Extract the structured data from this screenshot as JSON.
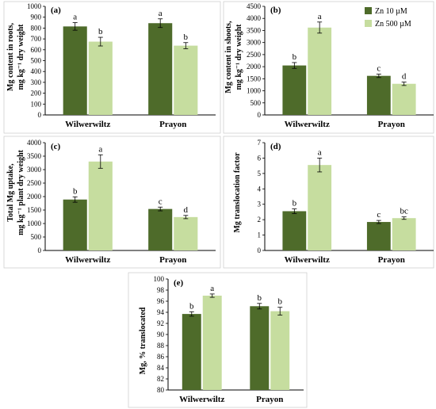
{
  "legend": {
    "entries": [
      {
        "label": "Zn 10 µM",
        "color": "#4e6b2a"
      },
      {
        "label": "Zn 500 µM",
        "color": "#c6dd9f"
      }
    ]
  },
  "chart_data": [
    {
      "type": "bar",
      "panel": "(a)",
      "ylabel": [
        "Mg content in roots,",
        "mg kg⁻¹ dry weight"
      ],
      "ylim": [
        0,
        1000
      ],
      "yticks": [
        0,
        100,
        200,
        300,
        400,
        500,
        600,
        700,
        800,
        900,
        1000
      ],
      "categories": [
        "Wilwerwiltz",
        "Prayon"
      ],
      "series": [
        {
          "name": "Zn 10 µM",
          "values": [
            815,
            845
          ],
          "errors": [
            35,
            40
          ],
          "letters": [
            "a",
            "a"
          ]
        },
        {
          "name": "Zn 500 µM",
          "values": [
            675,
            638
          ],
          "errors": [
            40,
            28
          ],
          "letters": [
            "b",
            "b"
          ]
        }
      ]
    },
    {
      "type": "bar",
      "panel": "(b)",
      "ylabel": [
        "Mg content in shoots,",
        "mg kg⁻¹ dry weight"
      ],
      "ylim": [
        0,
        4500
      ],
      "yticks": [
        0,
        500,
        1000,
        1500,
        2000,
        2500,
        3000,
        3500,
        4000,
        4500
      ],
      "categories": [
        "Wilwerwiltz",
        "Prayon"
      ],
      "series": [
        {
          "name": "Zn 10 µM",
          "values": [
            2050,
            1620
          ],
          "errors": [
            120,
            70
          ],
          "letters": [
            "b",
            "c"
          ]
        },
        {
          "name": "Zn 500 µM",
          "values": [
            3620,
            1290
          ],
          "errors": [
            230,
            70
          ],
          "letters": [
            "a",
            "d"
          ]
        }
      ]
    },
    {
      "type": "bar",
      "panel": "(c)",
      "ylabel": [
        "Total Mg uptake,",
        "mg kg⁻¹ plant dry weight"
      ],
      "ylim": [
        0,
        4000
      ],
      "yticks": [
        0,
        500,
        1000,
        1500,
        2000,
        2500,
        3000,
        3500,
        4000
      ],
      "categories": [
        "Wilwerwiltz",
        "Prayon"
      ],
      "series": [
        {
          "name": "Zn 10 µM",
          "values": [
            1890,
            1540
          ],
          "errors": [
            100,
            70
          ],
          "letters": [
            "b",
            "c"
          ]
        },
        {
          "name": "Zn 500 µM",
          "values": [
            3300,
            1240
          ],
          "errors": [
            250,
            60
          ],
          "letters": [
            "a",
            "d"
          ]
        }
      ]
    },
    {
      "type": "bar",
      "panel": "(d)",
      "ylabel": [
        "Mg translocation factor"
      ],
      "ylim": [
        0,
        7
      ],
      "yticks": [
        0,
        1,
        2,
        3,
        4,
        5,
        6,
        7
      ],
      "categories": [
        "Wilwerwiltz",
        "Prayon"
      ],
      "series": [
        {
          "name": "Zn 10 µM",
          "values": [
            2.55,
            1.85
          ],
          "errors": [
            0.15,
            0.1
          ],
          "letters": [
            "b",
            "c"
          ]
        },
        {
          "name": "Zn 500 µM",
          "values": [
            5.55,
            2.1
          ],
          "errors": [
            0.45,
            0.08
          ],
          "letters": [
            "a",
            "bc"
          ]
        }
      ]
    },
    {
      "type": "bar",
      "panel": "(e)",
      "ylabel": [
        "Mg, % translocated"
      ],
      "ylim": [
        80,
        100
      ],
      "yticks": [
        80,
        82,
        84,
        86,
        88,
        90,
        92,
        94,
        96,
        98,
        100
      ],
      "categories": [
        "Wilwerwiltz",
        "Prayon"
      ],
      "series": [
        {
          "name": "Zn 10 µM",
          "values": [
            93.7,
            95.1
          ],
          "errors": [
            0.4,
            0.5
          ],
          "letters": [
            "b",
            "b"
          ]
        },
        {
          "name": "Zn 500 µM",
          "values": [
            97.0,
            94.2
          ],
          "errors": [
            0.3,
            0.7
          ],
          "letters": [
            "a",
            "b"
          ]
        }
      ]
    }
  ]
}
